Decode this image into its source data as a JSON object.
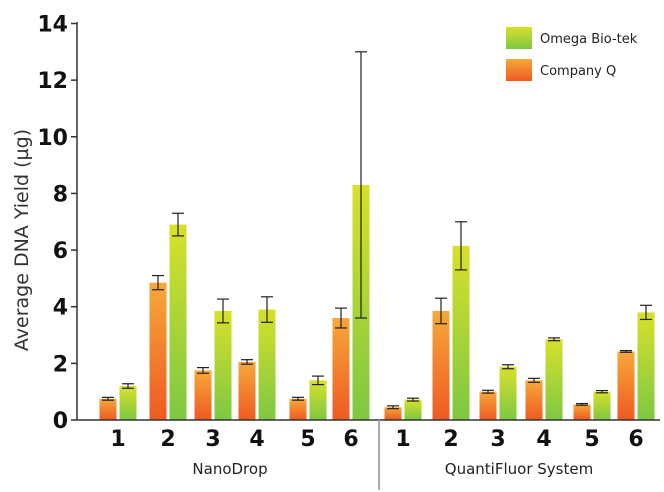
{
  "chart_data": {
    "type": "bar",
    "title": "",
    "xlabel": "",
    "ylabel": "Average DNA Yield (µg)",
    "ylim": [
      0,
      14
    ],
    "yticks": [
      "0",
      "2",
      "4",
      "6",
      "8",
      "10",
      "12",
      "14"
    ],
    "groups": [
      {
        "name": "NanoDrop",
        "categories": [
          "1",
          "2",
          "3",
          "4",
          "5",
          "6"
        ]
      },
      {
        "name": "QuantiFluor System",
        "categories": [
          "1",
          "2",
          "3",
          "4",
          "5",
          "6"
        ]
      }
    ],
    "legend": {
      "placement": "top-right"
    },
    "series": [
      {
        "name": "Company Q",
        "colors": [
          "#f7a83a",
          "#ef5a22"
        ],
        "values": [
          0.75,
          4.85,
          1.75,
          2.05,
          0.75,
          3.6,
          0.45,
          3.85,
          1.0,
          1.4,
          0.55,
          2.42
        ],
        "errors": [
          0.05,
          0.25,
          0.1,
          0.08,
          0.05,
          0.35,
          0.05,
          0.45,
          0.05,
          0.07,
          0.03,
          0.03
        ]
      },
      {
        "name": "Omega Bio-tek",
        "colors": [
          "#d8e02a",
          "#7ec843"
        ],
        "values": [
          1.2,
          6.9,
          3.85,
          3.9,
          1.4,
          8.3,
          0.72,
          6.15,
          1.88,
          2.85,
          1.0,
          3.8
        ],
        "errors": [
          0.08,
          0.4,
          0.42,
          0.45,
          0.15,
          4.7,
          0.05,
          0.85,
          0.07,
          0.05,
          0.04,
          0.25
        ]
      }
    ]
  }
}
